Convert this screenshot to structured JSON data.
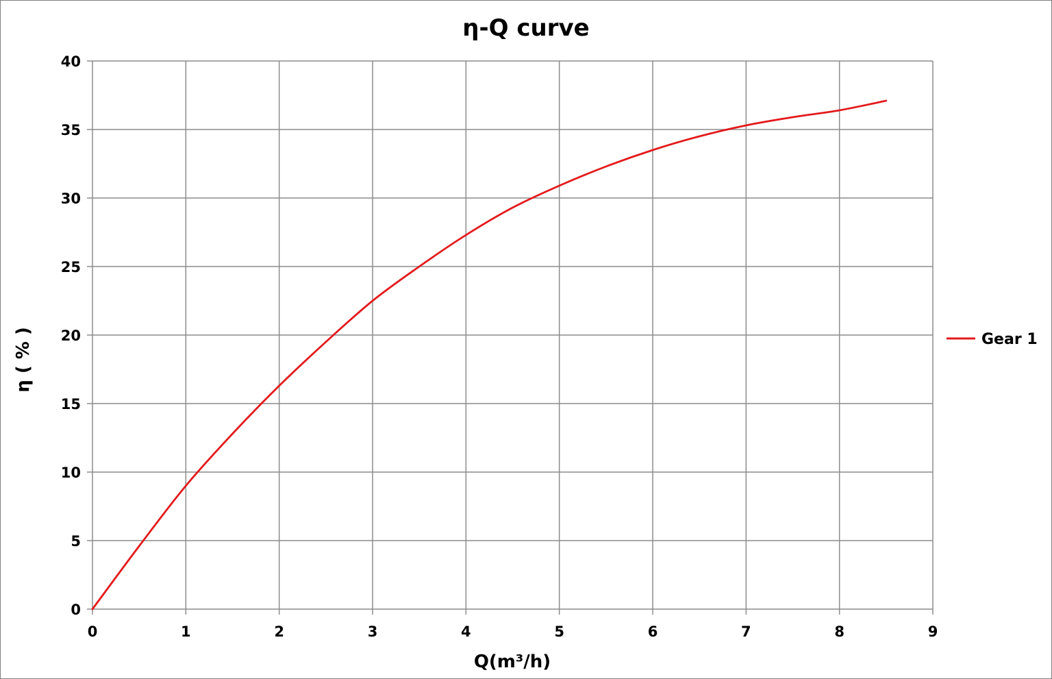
{
  "chart_data": {
    "type": "line",
    "title": "η-Q  curve",
    "xlabel": "Q(m³/h)",
    "ylabel": "η ( % )",
    "xlim": [
      0,
      9
    ],
    "ylim": [
      0,
      40
    ],
    "x_ticks": [
      "0",
      "1",
      "2",
      "3",
      "4",
      "5",
      "6",
      "7",
      "8",
      "9"
    ],
    "y_ticks": [
      "0",
      "5",
      "10",
      "15",
      "20",
      "25",
      "30",
      "35",
      "40"
    ],
    "grid": true,
    "legend_position": "right",
    "series": [
      {
        "name": "Gear 1",
        "color": "#e31a1c",
        "x": [
          0,
          0.5,
          1,
          1.5,
          2,
          2.5,
          3,
          3.5,
          4,
          4.5,
          5,
          5.5,
          6,
          6.5,
          7,
          7.5,
          8,
          8.5
        ],
        "y": [
          0,
          4.6,
          9.0,
          12.8,
          16.3,
          19.5,
          22.5,
          25.0,
          27.3,
          29.3,
          30.9,
          32.3,
          33.5,
          34.5,
          35.3,
          35.9,
          36.4,
          37.1
        ]
      }
    ]
  }
}
